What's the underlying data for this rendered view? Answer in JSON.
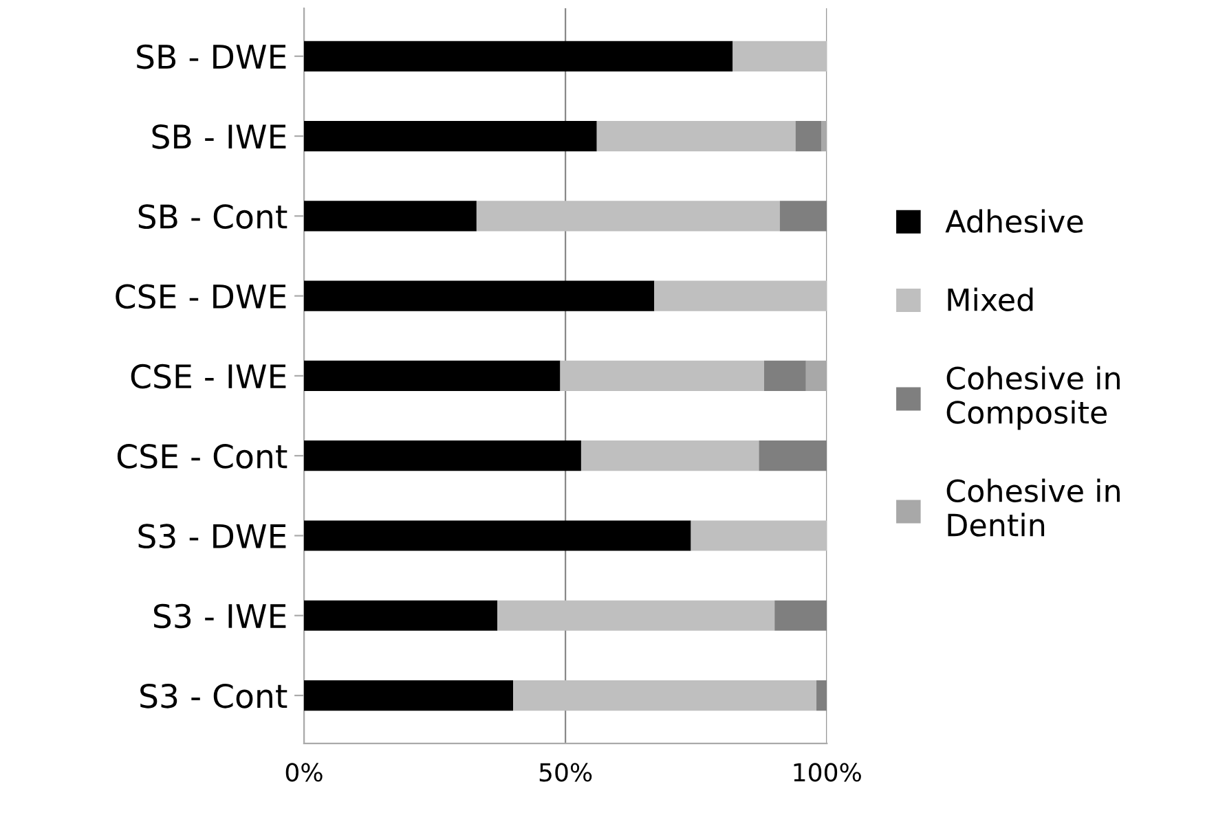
{
  "chart_data": {
    "type": "bar",
    "orientation": "horizontal",
    "stacked": true,
    "categories": [
      "SB - DWE",
      "SB - IWE",
      "SB - Cont",
      "CSE - DWE",
      "CSE - IWE",
      "CSE - Cont",
      "S3 - DWE",
      "S3 - IWE",
      "S3 - Cont"
    ],
    "series": [
      {
        "name": "Adhesive",
        "color": "#000000",
        "values": [
          82,
          56,
          33,
          67,
          49,
          53,
          74,
          37,
          40
        ]
      },
      {
        "name": "Mixed",
        "color": "#bfbfbf",
        "values": [
          18,
          38,
          58,
          33,
          39,
          34,
          26,
          53,
          58
        ]
      },
      {
        "name": "Cohesive in Composite",
        "color": "#7f7f7f",
        "values": [
          0,
          5,
          9,
          0,
          8,
          13,
          0,
          10,
          2
        ]
      },
      {
        "name": "Cohesive in Dentin",
        "color": "#a8a8a8",
        "values": [
          0,
          1,
          0,
          0,
          4,
          0,
          0,
          0,
          0
        ]
      }
    ],
    "xlim": [
      0,
      100
    ],
    "xticks": [
      {
        "value": 0,
        "label": "0%"
      },
      {
        "value": 50,
        "label": "50%"
      },
      {
        "value": 100,
        "label": "100%"
      }
    ],
    "grid": "x",
    "legend": "right"
  }
}
